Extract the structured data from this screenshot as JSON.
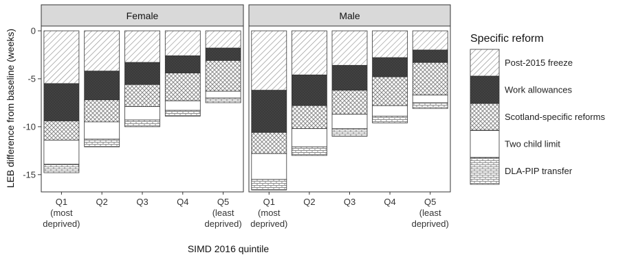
{
  "chart_data": {
    "type": "bar",
    "stacked": true,
    "xlabel": "SIMD 2016 quintile",
    "ylabel": "LEB difference from baseline (weeks)",
    "ylim": [
      -16.8,
      0.5
    ],
    "yticks": [
      0,
      -5,
      -10,
      -15
    ],
    "grid": false,
    "categories": [
      [
        "Q1",
        "(most",
        "deprived)"
      ],
      [
        "Q2"
      ],
      [
        "Q3"
      ],
      [
        "Q4"
      ],
      [
        "Q5",
        "(least",
        "deprived)"
      ]
    ],
    "legend": {
      "title": "Specific reform",
      "position": "right",
      "entries": [
        {
          "key": "post2015",
          "label": "Post-2015 freeze"
        },
        {
          "key": "work",
          "label": "Work allowances"
        },
        {
          "key": "scotland",
          "label": "Scotland-specific reforms"
        },
        {
          "key": "twochild",
          "label": "Two child limit"
        },
        {
          "key": "dlapip",
          "label": "DLA-PIP transfer"
        }
      ]
    },
    "panels": [
      {
        "label": "Female",
        "series": [
          {
            "name": "Post-2015 freeze",
            "values": [
              -5.5,
              -4.2,
              -3.3,
              -2.6,
              -1.8
            ]
          },
          {
            "name": "Work allowances",
            "values": [
              -3.9,
              -3.0,
              -2.3,
              -1.8,
              -1.3
            ]
          },
          {
            "name": "Scotland-specific reforms",
            "values": [
              -2.0,
              -2.3,
              -2.3,
              -2.9,
              -3.2
            ]
          },
          {
            "name": "Two child limit",
            "values": [
              -2.5,
              -1.8,
              -1.4,
              -1.0,
              -0.7
            ]
          },
          {
            "name": "DLA-PIP transfer",
            "values": [
              -0.9,
              -0.8,
              -0.7,
              -0.6,
              -0.5
            ]
          }
        ]
      },
      {
        "label": "Male",
        "series": [
          {
            "name": "Post-2015 freeze",
            "values": [
              -6.2,
              -4.6,
              -3.6,
              -2.8,
              -2.0
            ]
          },
          {
            "name": "Work allowances",
            "values": [
              -4.4,
              -3.2,
              -2.6,
              -2.0,
              -1.3
            ]
          },
          {
            "name": "Scotland-specific reforms",
            "values": [
              -2.2,
              -2.4,
              -2.5,
              -3.0,
              -3.4
            ]
          },
          {
            "name": "Two child limit",
            "values": [
              -2.7,
              -1.9,
              -1.5,
              -1.1,
              -0.8
            ]
          },
          {
            "name": "DLA-PIP transfer",
            "values": [
              -1.1,
              -0.9,
              -0.8,
              -0.7,
              -0.6
            ]
          }
        ]
      }
    ]
  }
}
